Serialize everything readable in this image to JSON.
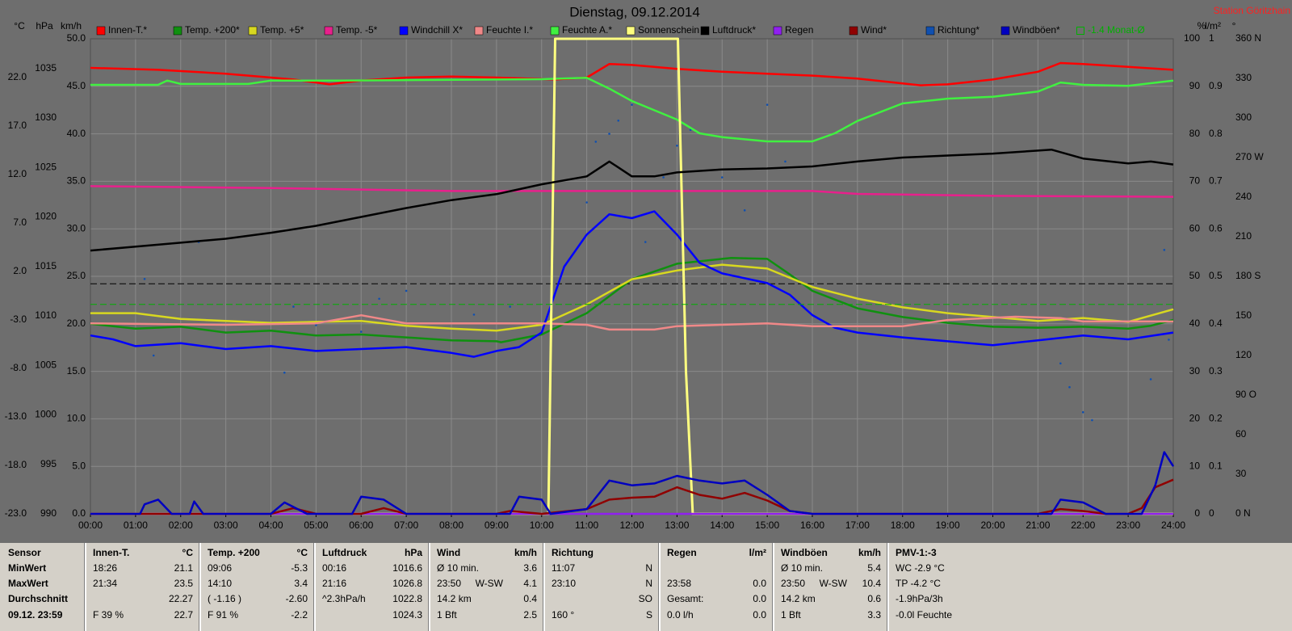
{
  "chart_data": {
    "type": "line",
    "title": "Dienstag, 09.12.2014",
    "subtitle": "Station Göritzhain",
    "grid": true,
    "xlim": [
      0,
      24
    ],
    "xticks": [
      {
        "value": 0,
        "label": "00:00"
      },
      {
        "value": 1,
        "label": "01:00"
      },
      {
        "value": 2,
        "label": "02:00"
      },
      {
        "value": 3,
        "label": "03:00"
      },
      {
        "value": 4,
        "label": "04:00"
      },
      {
        "value": 5,
        "label": "05:00"
      },
      {
        "value": 6,
        "label": "06:00"
      },
      {
        "value": 7,
        "label": "07:00"
      },
      {
        "value": 8,
        "label": "08:00"
      },
      {
        "value": 9,
        "label": "09:00"
      },
      {
        "value": 10,
        "label": "10:00"
      },
      {
        "value": 11,
        "label": "11:00"
      },
      {
        "value": 12,
        "label": "12:00"
      },
      {
        "value": 13,
        "label": "13:00"
      },
      {
        "value": 14,
        "label": "14:00"
      },
      {
        "value": 15,
        "label": "15:00"
      },
      {
        "value": 16,
        "label": "16:00"
      },
      {
        "value": 17,
        "label": "17:00"
      },
      {
        "value": 18,
        "label": "18:00"
      },
      {
        "value": 19,
        "label": "19:00"
      },
      {
        "value": 20,
        "label": "20:00"
      },
      {
        "value": 21,
        "label": "21:00"
      },
      {
        "value": 22,
        "label": "22:00"
      },
      {
        "value": 23,
        "label": "23:00"
      },
      {
        "value": 24,
        "label": "24:00"
      }
    ],
    "axes": [
      {
        "label": "°C",
        "ylim": [
          -23,
          26
        ],
        "yticks": [
          {
            "value": -23,
            "label": "-23.0"
          },
          {
            "value": -18,
            "label": "-18.0"
          },
          {
            "value": -13,
            "label": "-13.0"
          },
          {
            "value": -8,
            "label": "-8.0"
          },
          {
            "value": -3,
            "label": "-3.0"
          },
          {
            "value": 2,
            "label": "2.0"
          },
          {
            "value": 7,
            "label": "7.0"
          },
          {
            "value": 12,
            "label": "12.0"
          },
          {
            "value": 17,
            "label": "17.0"
          },
          {
            "value": 22,
            "label": "22.0"
          }
        ]
      },
      {
        "label": "hPa",
        "ylim": [
          990,
          1038
        ],
        "yticks": [
          990,
          995,
          1000,
          1005,
          1010,
          1015,
          1020,
          1025,
          1030,
          1035
        ]
      },
      {
        "label": "km/h",
        "ylim": [
          0,
          50
        ],
        "grid": true,
        "yticks": [
          {
            "value": 0,
            "label": "0.0"
          },
          {
            "value": 5,
            "label": "5.0"
          },
          {
            "value": 10,
            "label": "10.0"
          },
          {
            "value": 15,
            "label": "15.0"
          },
          {
            "value": 20,
            "label": "20.0"
          },
          {
            "value": 25,
            "label": "25.0"
          },
          {
            "value": 30,
            "label": "30.0"
          },
          {
            "value": 35,
            "label": "35.0"
          },
          {
            "value": 40,
            "label": "40.0"
          },
          {
            "value": 45,
            "label": "45.0"
          },
          {
            "value": 50,
            "label": "50.0"
          }
        ]
      },
      {
        "label": "%",
        "ylim": [
          0,
          100
        ],
        "yticks": [
          0,
          10,
          20,
          30,
          40,
          50,
          60,
          70,
          80,
          90,
          100
        ]
      },
      {
        "label": "l/m²",
        "ylim": [
          0,
          1
        ],
        "yticks": [
          0,
          0.1,
          0.2,
          0.3,
          0.4,
          0.5,
          0.6,
          0.7,
          0.8,
          0.9,
          1
        ]
      },
      {
        "label": "°",
        "ylim": [
          0,
          360
        ],
        "yticks": [
          {
            "value": 0,
            "label": "0 N"
          },
          30,
          60,
          {
            "value": 90,
            "label": "90 O"
          },
          120,
          150,
          {
            "value": 180,
            "label": "180 S"
          },
          210,
          240,
          {
            "value": 270,
            "label": "270 W"
          },
          300,
          330,
          {
            "value": 360,
            "label": "360 N"
          }
        ]
      }
    ],
    "reference_lines": [
      {
        "axis": 1,
        "value": 1013.25,
        "color": "#000000"
      }
    ],
    "series": [
      {
        "name": "Innen-T.*",
        "color": "#ff0000",
        "axis": 0,
        "x": [
          0,
          1.5,
          3,
          4.5,
          5.3,
          6,
          7,
          8,
          9,
          10.3,
          11,
          11.5,
          12,
          13,
          14,
          15,
          16,
          17,
          18,
          18.4,
          19,
          20,
          21,
          21.5,
          22,
          23,
          24
        ],
        "values": [
          23.0,
          22.8,
          22.4,
          21.8,
          21.3,
          21.7,
          22.0,
          22.1,
          22.0,
          21.8,
          22.0,
          23.4,
          23.3,
          22.9,
          22.6,
          22.4,
          22.2,
          21.9,
          21.4,
          21.2,
          21.3,
          21.8,
          22.6,
          23.5,
          23.4,
          23.1,
          22.8
        ]
      },
      {
        "name": "Temp. +200*",
        "color": "#109010",
        "axis": 0,
        "x": [
          0,
          1,
          2,
          3,
          4,
          5,
          6,
          7,
          8,
          9,
          9.1,
          10,
          11,
          12,
          13,
          14,
          14.2,
          15,
          15.5,
          16,
          17,
          18,
          19,
          20,
          21,
          22,
          23,
          23.5,
          24
        ],
        "values": [
          -3.4,
          -3.9,
          -3.7,
          -4.3,
          -4.1,
          -4.6,
          -4.5,
          -4.8,
          -5.1,
          -5.2,
          -5.3,
          -4.5,
          -2.3,
          1.2,
          2.8,
          3.3,
          3.4,
          3.3,
          1.7,
          0.0,
          -1.8,
          -2.7,
          -3.3,
          -3.7,
          -3.8,
          -3.7,
          -3.9,
          -3.6,
          -3.0
        ]
      },
      {
        "name": "Temp. +5*",
        "color": "#d8d820",
        "axis": 0,
        "x": [
          0,
          1,
          2,
          3,
          4,
          5,
          6,
          7,
          8,
          9,
          10,
          11,
          12,
          13,
          14,
          15,
          16,
          17,
          18,
          19,
          20,
          21,
          22,
          23,
          24
        ],
        "values": [
          -2.3,
          -2.3,
          -2.9,
          -3.1,
          -3.3,
          -3.2,
          -3.1,
          -3.6,
          -3.9,
          -4.1,
          -3.5,
          -1.4,
          1.2,
          2.1,
          2.7,
          2.3,
          0.4,
          -0.8,
          -1.7,
          -2.3,
          -2.7,
          -3.1,
          -2.8,
          -3.2,
          -1.9
        ]
      },
      {
        "name": "Temp. -5*",
        "color": "#e8208c",
        "axis": 0,
        "x": [
          0,
          4,
          8,
          12,
          16,
          17,
          20,
          24
        ],
        "values": [
          10.8,
          10.6,
          10.3,
          10.3,
          10.3,
          10.0,
          9.8,
          9.7
        ]
      },
      {
        "name": "Windchill X*",
        "color": "#0000ff",
        "axis": 0,
        "x": [
          0,
          0.5,
          1,
          2,
          3,
          4,
          5,
          6,
          7,
          8,
          8.5,
          9,
          9.5,
          10,
          10.5,
          11,
          11.5,
          12,
          12.5,
          13,
          13.5,
          14,
          15,
          15.5,
          16,
          16.5,
          17,
          18,
          19,
          20,
          21,
          22,
          23,
          24
        ],
        "values": [
          -4.6,
          -5.0,
          -5.7,
          -5.4,
          -6.0,
          -5.7,
          -6.2,
          -6.0,
          -5.8,
          -6.4,
          -6.8,
          -6.2,
          -5.8,
          -4.3,
          2.5,
          5.8,
          7.9,
          7.5,
          8.2,
          5.8,
          2.9,
          1.8,
          0.8,
          -0.4,
          -2.5,
          -3.8,
          -4.3,
          -4.8,
          -5.2,
          -5.6,
          -5.1,
          -4.6,
          -5.0,
          -4.3
        ]
      },
      {
        "name": "Feuchte I.*",
        "color": "#f08888",
        "axis": 3,
        "x": [
          0,
          3,
          5,
          6,
          7,
          10,
          11,
          11.5,
          12.5,
          13,
          15,
          16,
          18,
          19,
          20.5,
          21.5,
          22,
          24
        ],
        "values": [
          40.1,
          39.8,
          40.1,
          41.8,
          40.1,
          40.1,
          39.8,
          38.8,
          38.8,
          39.5,
          40.1,
          39.5,
          39.5,
          40.8,
          41.5,
          41.2,
          40.5,
          40.5
        ]
      },
      {
        "name": "Feuchte A.*",
        "color": "#40f040",
        "axis": 3,
        "x": [
          0,
          1.5,
          1.7,
          2,
          3.5,
          4,
          5.5,
          10,
          11,
          11.5,
          12,
          13,
          13.5,
          14,
          15,
          16,
          16.5,
          17,
          18,
          19,
          20,
          21,
          21.5,
          22,
          23,
          24
        ],
        "values": [
          90.3,
          90.3,
          91.2,
          90.5,
          90.5,
          91.2,
          91.2,
          91.5,
          91.8,
          89.5,
          86.9,
          83.0,
          80.1,
          79.3,
          78.4,
          78.4,
          80.1,
          82.7,
          86.4,
          87.4,
          87.8,
          88.9,
          90.8,
          90.3,
          90.1,
          91.2
        ]
      },
      {
        "name": "Sonnenschein",
        "color": "#ffff80",
        "axis": 3,
        "x": [
          0,
          10.15,
          10.3,
          13.02,
          13.2,
          13.35,
          24
        ],
        "values": [
          0,
          0,
          100,
          100,
          30,
          0,
          0
        ]
      },
      {
        "name": "Luftdruck*",
        "color": "#000000",
        "axis": 1,
        "x": [
          0,
          1,
          2,
          3,
          4,
          5,
          6,
          7,
          8,
          9,
          10,
          11,
          11.5,
          12,
          12.5,
          13,
          14,
          15,
          16,
          17,
          18,
          19,
          20,
          21,
          21.3,
          22,
          23,
          23.5,
          24
        ],
        "values": [
          1016.6,
          1017.0,
          1017.4,
          1017.8,
          1018.4,
          1019.1,
          1020.0,
          1020.9,
          1021.7,
          1022.3,
          1023.3,
          1024.1,
          1025.6,
          1024.1,
          1024.1,
          1024.5,
          1024.8,
          1024.9,
          1025.1,
          1025.6,
          1026.0,
          1026.2,
          1026.4,
          1026.7,
          1026.8,
          1025.9,
          1025.4,
          1025.6,
          1025.3
        ]
      },
      {
        "name": "Regen",
        "color": "#9020f0",
        "axis": 4,
        "x": [
          0,
          24
        ],
        "values": [
          0,
          0
        ]
      },
      {
        "name": "Wind*",
        "color": "#900000",
        "axis": 2,
        "x": [
          0,
          4,
          4.5,
          5,
          6,
          6.5,
          7,
          9,
          9.3,
          10,
          11,
          11.5,
          12,
          12.5,
          13,
          13.5,
          14,
          14.5,
          15,
          15.5,
          16,
          21,
          21.5,
          22,
          22.5,
          23,
          23.3,
          23.6,
          24
        ],
        "values": [
          0,
          0,
          0.6,
          0,
          0,
          0.6,
          0,
          0,
          0.3,
          0,
          0.5,
          1.5,
          1.7,
          1.8,
          2.8,
          2.0,
          1.6,
          2.2,
          1.4,
          0.3,
          0,
          0,
          0.5,
          0.3,
          0,
          0,
          0.6,
          2.8,
          3.6
        ]
      },
      {
        "name": "Richtung*",
        "color": "#1050b0",
        "axis": 5,
        "type": "scatter",
        "x": [
          1.2,
          1.4,
          2.4,
          4.3,
          4.5,
          5.0,
          6.0,
          6.4,
          7.0,
          8.5,
          9.3,
          11.0,
          11.2,
          11.5,
          11.7,
          12.0,
          12.3,
          12.7,
          13.0,
          13.3,
          13.5,
          14.0,
          14.5,
          15.0,
          15.4,
          21.5,
          21.7,
          22.0,
          22.2,
          23.5,
          23.8,
          23.9
        ],
        "values": [
          178,
          120,
          206,
          107,
          157,
          143,
          138,
          163,
          169,
          151,
          157,
          236,
          282,
          288,
          298,
          310,
          206,
          255,
          279,
          291,
          187,
          255,
          230,
          310,
          267,
          114,
          96,
          77,
          71,
          102,
          200,
          132
        ]
      },
      {
        "name": "Windböen*",
        "color": "#0000c0",
        "axis": 2,
        "x": [
          0,
          1.1,
          1.2,
          1.5,
          1.8,
          2.2,
          2.3,
          2.5,
          4,
          4.3,
          4.8,
          5.8,
          6,
          6.5,
          7,
          9.3,
          9.5,
          10,
          10.2,
          11,
          11.5,
          12,
          12.5,
          13,
          13.5,
          14,
          14.5,
          15,
          15.5,
          16,
          21.3,
          21.5,
          22,
          22.5,
          23.3,
          23.6,
          23.8,
          24
        ],
        "values": [
          0,
          0,
          1.0,
          1.5,
          0,
          0,
          1.3,
          0,
          0,
          1.2,
          0,
          0,
          1.8,
          1.5,
          0,
          0,
          1.8,
          1.5,
          0,
          0.5,
          3.5,
          3.0,
          3.2,
          4.0,
          3.5,
          3.2,
          3.5,
          2.0,
          0.3,
          0,
          0,
          1.5,
          1.2,
          0,
          0,
          3.0,
          6.5,
          5.0
        ]
      },
      {
        "name": "-1.4 Monat-Ø",
        "color": "#00b000",
        "axis": 0,
        "type": "hline",
        "values": [
          -1.4
        ]
      }
    ]
  },
  "table": {
    "row_labels": [
      "Sensor",
      "MinWert",
      "MaxWert",
      "Durchschnitt",
      "09.12. 23:59"
    ],
    "columns": [
      {
        "header": "Innen-T.",
        "unit": "°C",
        "rows": [
          {
            "left": "18:26",
            "right": "21.1"
          },
          {
            "left": "21:34",
            "right": "23.5"
          },
          {
            "right": "22.27"
          },
          {
            "left": "F 39 %",
            "right": "22.7"
          }
        ]
      },
      {
        "header": "Temp. +200",
        "unit": "°C",
        "rows": [
          {
            "left": "09:06",
            "right": "-5.3"
          },
          {
            "left": "14:10",
            "right": "3.4"
          },
          {
            "left": "( -1.16 )",
            "right": "-2.60"
          },
          {
            "left": "F 91 %",
            "right": "-2.2"
          }
        ]
      },
      {
        "header": "Luftdruck",
        "unit": "hPa",
        "rows": [
          {
            "left": "00:16",
            "right": "1016.6"
          },
          {
            "left": "21:16",
            "right": "1026.8"
          },
          {
            "left": "^2.3hPa/h",
            "right": "1022.8"
          },
          {
            "right": "1024.3"
          }
        ]
      },
      {
        "header": "Wind",
        "unit": "km/h",
        "rows": [
          {
            "left": "Ø 10 min.",
            "right": "3.6"
          },
          {
            "left": "23:50",
            "mid": "W-SW",
            "right": "4.1"
          },
          {
            "left": "14.2 km",
            "right": "0.4"
          },
          {
            "left": "1 Bft",
            "right": "2.5"
          }
        ]
      },
      {
        "header": "Richtung",
        "rows": [
          {
            "left": "11:07",
            "right": "N"
          },
          {
            "left": "23:10",
            "right": "N"
          },
          {
            "right": "SO"
          },
          {
            "left": "160 °",
            "right": "S"
          }
        ]
      },
      {
        "header": "Regen",
        "unit": "l/m²",
        "rows": [
          {},
          {
            "left": "23:58",
            "right": "0.0"
          },
          {
            "left": "Gesamt:",
            "right": "0.0"
          },
          {
            "left": "0.0 l/h",
            "right": "0.0"
          }
        ]
      },
      {
        "header": "Windböen",
        "unit": "km/h",
        "rows": [
          {
            "left": "Ø 10 min.",
            "right": "5.4"
          },
          {
            "left": "23:50",
            "mid": "W-SW",
            "right": "10.4"
          },
          {
            "left": "14.2 km",
            "right": "0.6"
          },
          {
            "left": "1 Bft",
            "right": "3.3"
          }
        ]
      },
      {
        "header": "PMV-1:-3",
        "rows": [
          {
            "left": "WC -2.9 °C"
          },
          {
            "left": "TP -4.2 °C"
          },
          {
            "left": "-1.9hPa/3h"
          },
          {
            "left": "-0.0l Feuchte"
          }
        ]
      }
    ]
  }
}
